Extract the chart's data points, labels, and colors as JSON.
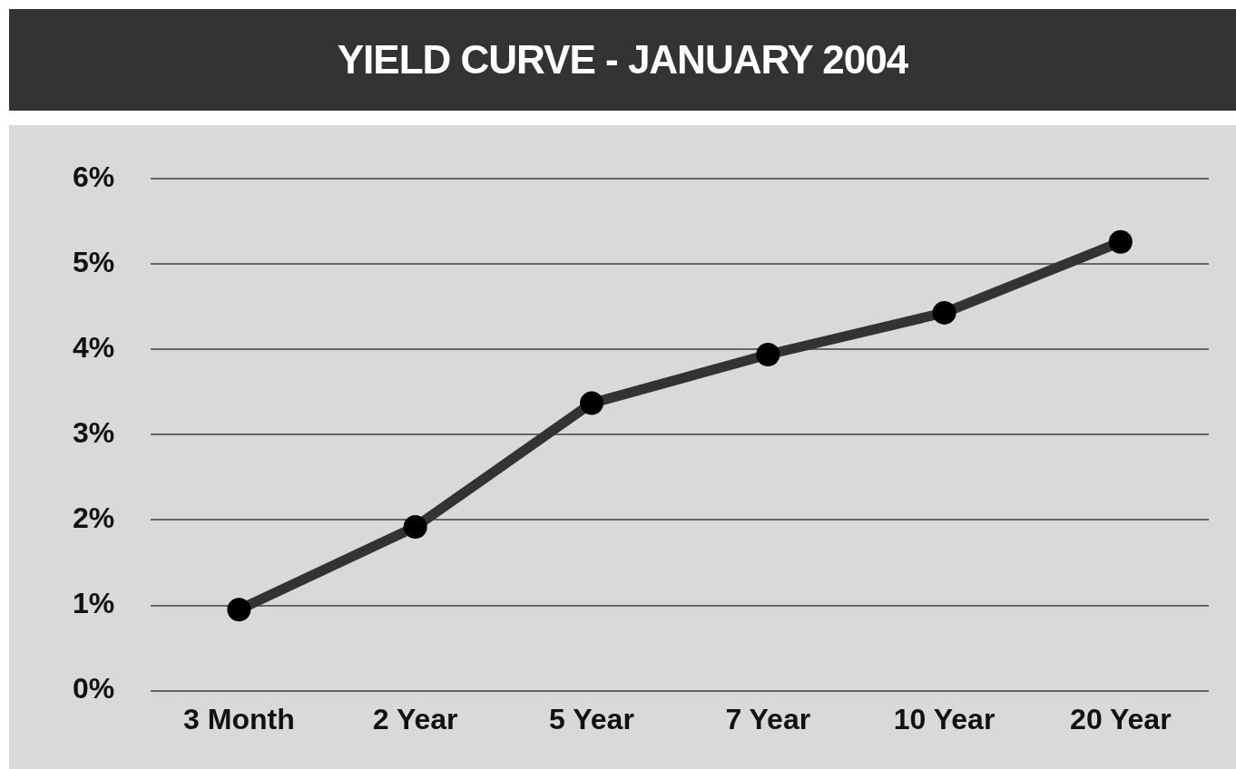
{
  "chart_data": {
    "type": "line",
    "title": "YIELD CURVE - JANUARY 2004",
    "categories": [
      "3 Month",
      "2 Year",
      "5 Year",
      "7 Year",
      "10 Year",
      "20 Year"
    ],
    "series": [
      {
        "color": "#333333",
        "values": [
          0.95,
          1.92,
          3.37,
          3.94,
          4.43,
          5.26
        ]
      }
    ],
    "ylim": [
      0,
      6
    ],
    "yticks": [
      {
        "value": 0,
        "label": "0%"
      },
      {
        "value": 1,
        "label": "1%"
      },
      {
        "value": 2,
        "label": "2%"
      },
      {
        "value": 3,
        "label": "3%"
      },
      {
        "value": 4,
        "label": "4%"
      },
      {
        "value": 5,
        "label": "5%"
      },
      {
        "value": 6,
        "label": "6%"
      }
    ],
    "grid": "y",
    "legend": false,
    "marker": "circle",
    "line_style": "solid"
  }
}
